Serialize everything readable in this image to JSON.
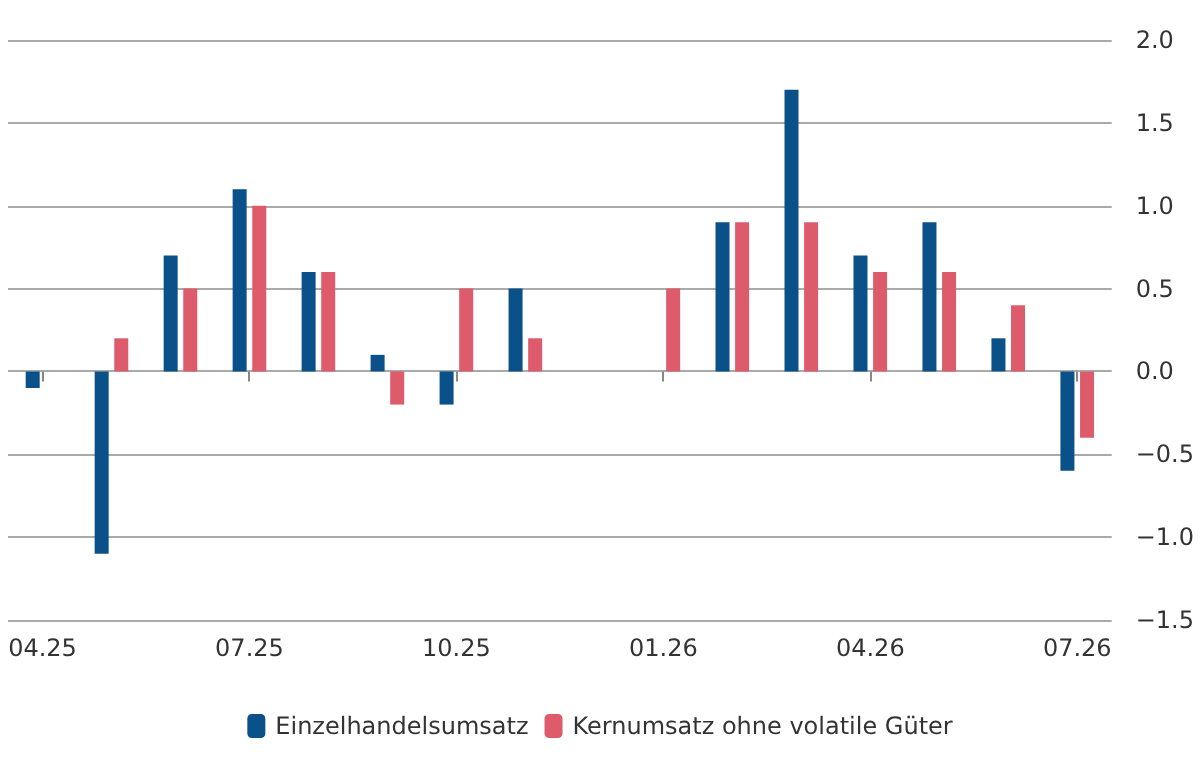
{
  "chart_data": {
    "type": "bar",
    "categories": [
      "04.25",
      null,
      null,
      "07.25",
      null,
      null,
      "10.25",
      null,
      null,
      "01.26",
      null,
      null,
      "04.26",
      null,
      null,
      "07.26"
    ],
    "series": [
      {
        "name": "Einzelhandelsumsatz",
        "color": "#0a5089",
        "values": [
          -0.1,
          -1.1,
          0.7,
          1.1,
          0.6,
          0.1,
          -0.2,
          0.5,
          null,
          null,
          0.9,
          1.7,
          0.7,
          0.9,
          0.2,
          -0.6
        ]
      },
      {
        "name": "Kernumsatz ohne volatile Güter",
        "color": "#de5b6b",
        "values": [
          null,
          0.2,
          0.5,
          1.0,
          0.6,
          -0.2,
          0.5,
          0.2,
          null,
          0.5,
          0.9,
          0.9,
          0.6,
          0.6,
          0.4,
          -0.4
        ]
      }
    ],
    "ylim": [
      -1.5,
      2.0
    ],
    "yticks": [
      {
        "value": -1.5,
        "label": "−1.5"
      },
      {
        "value": -1.0,
        "label": "−1.0"
      },
      {
        "value": -0.5,
        "label": "−0.5"
      },
      {
        "value": 0,
        "label": "0.0"
      },
      {
        "value": 0.5,
        "label": "0.5"
      },
      {
        "value": 1.0,
        "label": "1.0"
      },
      {
        "value": 1.5,
        "label": "1.5"
      },
      {
        "value": 2.0,
        "label": "2.0"
      }
    ],
    "grid": "y",
    "legend": "bottom"
  }
}
